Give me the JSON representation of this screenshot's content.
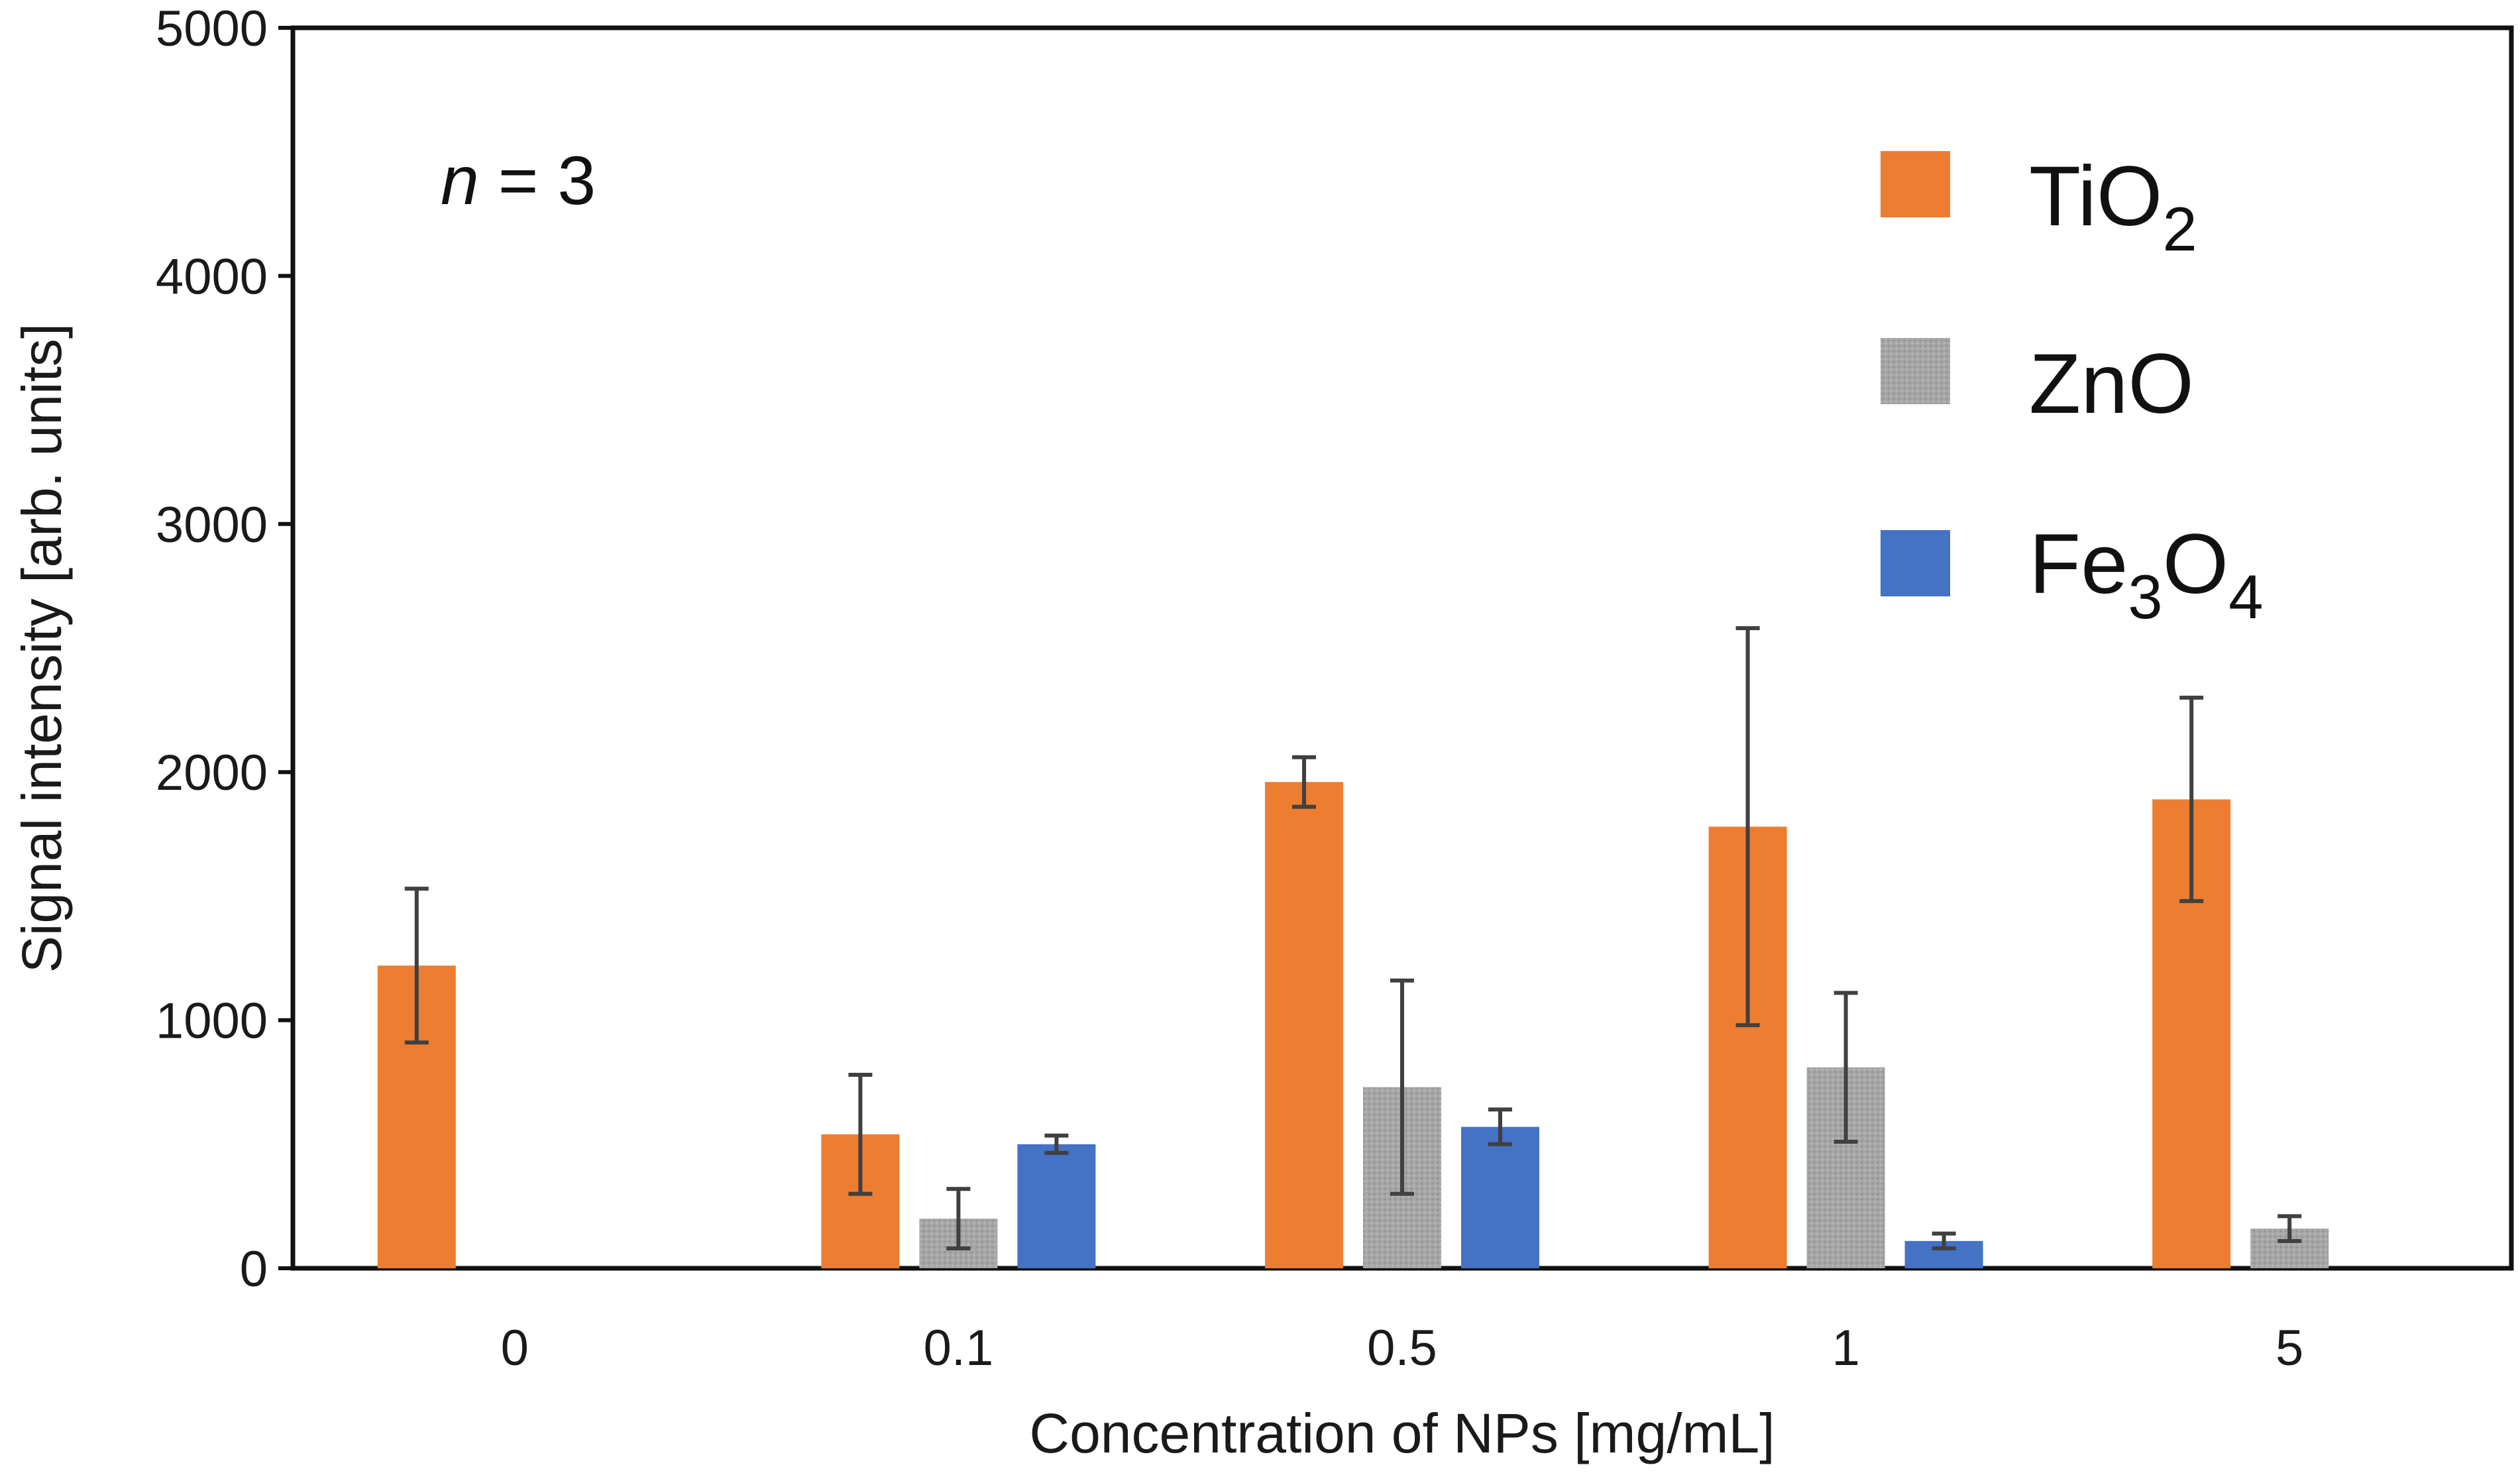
{
  "chart_data": {
    "type": "bar",
    "title": "",
    "xlabel": "Concentration of NPs [mg/mL]",
    "ylabel": "Signal intensity [arb. units]",
    "ylim": [
      0,
      5000
    ],
    "yticks": [
      "0",
      "1000",
      "2000",
      "3000",
      "4000",
      "5000"
    ],
    "categories": [
      "0",
      "0.1",
      "0.5",
      "1",
      "5"
    ],
    "series": [
      {
        "name": "TiO2",
        "legend_base": "TiO",
        "legend_sub": "2",
        "color": "#ED7D31",
        "values": [
          1220,
          540,
          1960,
          1780,
          1890
        ],
        "errors": [
          310,
          240,
          100,
          800,
          410
        ]
      },
      {
        "name": "ZnO",
        "legend_base": "ZnO",
        "legend_sub": "",
        "color": "#A6A6A6",
        "values": [
          null,
          200,
          730,
          810,
          160
        ],
        "errors": [
          null,
          120,
          430,
          300,
          50
        ]
      },
      {
        "name": "Fe3O4",
        "legend_parts": [
          "Fe",
          "3",
          "O",
          "4"
        ],
        "color": "#4472C4",
        "values": [
          null,
          500,
          570,
          110,
          null
        ],
        "errors": [
          null,
          35,
          70,
          30,
          null
        ]
      }
    ],
    "annotation": {
      "italic": "n",
      "rest": " = 3"
    },
    "legend_position": "top-right"
  }
}
